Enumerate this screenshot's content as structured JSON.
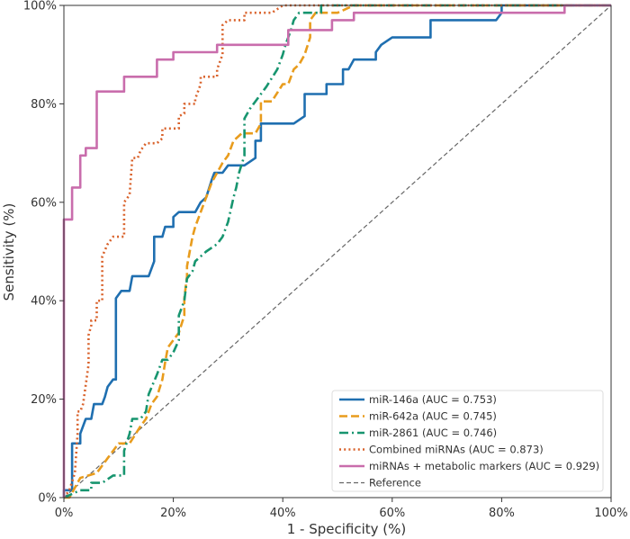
{
  "chart_data": {
    "type": "line",
    "xlabel": "1 - Specificity (%)",
    "ylabel": "Sensitivity (%)",
    "xlim": [
      0,
      100
    ],
    "ylim": [
      0,
      100
    ],
    "x_ticks": [
      "0%",
      "20%",
      "40%",
      "60%",
      "80%",
      "100%"
    ],
    "y_ticks": [
      "0%",
      "20%",
      "40%",
      "60%",
      "80%",
      "100%"
    ],
    "x_tick_values": [
      0,
      20,
      40,
      60,
      80,
      100
    ],
    "y_tick_values": [
      0,
      20,
      40,
      60,
      80,
      100
    ],
    "grid": false,
    "legend_position": "bottom-right",
    "series": [
      {
        "name": "miR-146a (AUC = 0.753)",
        "color": "#1f6fb0",
        "style": "solid",
        "points": [
          [
            0,
            0
          ],
          [
            0,
            1.5
          ],
          [
            1.5,
            1.5
          ],
          [
            1.5,
            11
          ],
          [
            3,
            11
          ],
          [
            3,
            13
          ],
          [
            4,
            16
          ],
          [
            5,
            16
          ],
          [
            5.5,
            19
          ],
          [
            7,
            19
          ],
          [
            7.5,
            20.5
          ],
          [
            8,
            22.5
          ],
          [
            9,
            24
          ],
          [
            9.5,
            24
          ],
          [
            9.5,
            40.5
          ],
          [
            10.5,
            42
          ],
          [
            12,
            42
          ],
          [
            12.5,
            45
          ],
          [
            15.5,
            45
          ],
          [
            16.5,
            48
          ],
          [
            16.5,
            53
          ],
          [
            18,
            53
          ],
          [
            18.5,
            55
          ],
          [
            20,
            55
          ],
          [
            20,
            57
          ],
          [
            21,
            58
          ],
          [
            24,
            58
          ],
          [
            25,
            60
          ],
          [
            26,
            61
          ],
          [
            27,
            64.5
          ],
          [
            27.5,
            66
          ],
          [
            29,
            66
          ],
          [
            30,
            67.5
          ],
          [
            33,
            67.5
          ],
          [
            35,
            69
          ],
          [
            35,
            72.5
          ],
          [
            36,
            72.5
          ],
          [
            36,
            76
          ],
          [
            42,
            76
          ],
          [
            44,
            77.5
          ],
          [
            44,
            82
          ],
          [
            48,
            82
          ],
          [
            48,
            84
          ],
          [
            51,
            84
          ],
          [
            51,
            87
          ],
          [
            52,
            87
          ],
          [
            53,
            89
          ],
          [
            57,
            89
          ],
          [
            57,
            90.5
          ],
          [
            58,
            92
          ],
          [
            60,
            93.5
          ],
          [
            67,
            93.5
          ],
          [
            67,
            97
          ],
          [
            79,
            97
          ],
          [
            80,
            98.5
          ],
          [
            80,
            100
          ],
          [
            100,
            100
          ]
        ]
      },
      {
        "name": "miR-642a (AUC = 0.745)",
        "color": "#e89c1d",
        "style": "dashed",
        "points": [
          [
            0,
            0
          ],
          [
            1,
            0
          ],
          [
            3,
            4
          ],
          [
            6,
            5
          ],
          [
            7,
            6.5
          ],
          [
            8,
            8
          ],
          [
            9,
            9.5
          ],
          [
            10,
            11
          ],
          [
            12,
            11
          ],
          [
            14,
            14.5
          ],
          [
            15,
            16
          ],
          [
            16,
            19
          ],
          [
            17,
            20.5
          ],
          [
            18,
            24
          ],
          [
            18.5,
            27.5
          ],
          [
            19,
            30.5
          ],
          [
            20,
            32
          ],
          [
            21,
            33.5
          ],
          [
            22,
            37
          ],
          [
            22,
            40.5
          ],
          [
            22.5,
            45
          ],
          [
            22.5,
            47
          ],
          [
            23,
            50
          ],
          [
            23.5,
            53
          ],
          [
            24,
            55
          ],
          [
            25,
            58
          ],
          [
            26,
            61
          ],
          [
            27,
            64
          ],
          [
            28,
            66
          ],
          [
            29,
            68
          ],
          [
            30,
            69.5
          ],
          [
            31,
            72.5
          ],
          [
            32.5,
            74
          ],
          [
            35,
            74
          ],
          [
            36,
            76
          ],
          [
            36,
            80.5
          ],
          [
            38,
            80.5
          ],
          [
            40,
            84
          ],
          [
            41,
            84
          ],
          [
            42,
            87
          ],
          [
            43,
            88
          ],
          [
            44,
            90
          ],
          [
            45,
            93.5
          ],
          [
            45,
            97
          ],
          [
            46,
            98.5
          ],
          [
            48,
            98.5
          ],
          [
            50,
            98.5
          ],
          [
            53,
            100
          ],
          [
            100,
            100
          ]
        ]
      },
      {
        "name": "miR-2861 (AUC = 0.746)",
        "color": "#17956f",
        "style": "dashdot",
        "points": [
          [
            0,
            0
          ],
          [
            3,
            1.5
          ],
          [
            5,
            1.5
          ],
          [
            5,
            3
          ],
          [
            7,
            3
          ],
          [
            9,
            4.5
          ],
          [
            11,
            4.5
          ],
          [
            11,
            9.5
          ],
          [
            12,
            13
          ],
          [
            12.5,
            16
          ],
          [
            14,
            16
          ],
          [
            15,
            17.5
          ],
          [
            15.5,
            21
          ],
          [
            17,
            25
          ],
          [
            18,
            28
          ],
          [
            19,
            28
          ],
          [
            20,
            29.5
          ],
          [
            21,
            32
          ],
          [
            21,
            37
          ],
          [
            22,
            40
          ],
          [
            22.5,
            44.5
          ],
          [
            23.5,
            46
          ],
          [
            24,
            48
          ],
          [
            26,
            50
          ],
          [
            28,
            51.5
          ],
          [
            29,
            53
          ],
          [
            30,
            56
          ],
          [
            31,
            61
          ],
          [
            31.5,
            63
          ],
          [
            32,
            66
          ],
          [
            33,
            69.5
          ],
          [
            33,
            74
          ],
          [
            33,
            77
          ],
          [
            34,
            79
          ],
          [
            36,
            82
          ],
          [
            37,
            83.5
          ],
          [
            39,
            87
          ],
          [
            40,
            90
          ],
          [
            40.5,
            92
          ],
          [
            41.5,
            95
          ],
          [
            42,
            97
          ],
          [
            43,
            98.5
          ],
          [
            45,
            98.5
          ],
          [
            47,
            98.5
          ],
          [
            47,
            100
          ],
          [
            100,
            100
          ]
        ]
      },
      {
        "name": "Combined miRNAs (AUC = 0.873)",
        "color": "#d9622b",
        "style": "dotted",
        "points": [
          [
            0,
            0
          ],
          [
            1,
            1.5
          ],
          [
            2,
            5
          ],
          [
            2.5,
            13
          ],
          [
            2.5,
            17.5
          ],
          [
            3,
            17.5
          ],
          [
            3.5,
            19
          ],
          [
            4.5,
            27
          ],
          [
            4.5,
            33
          ],
          [
            5,
            35
          ],
          [
            5,
            36
          ],
          [
            6,
            36
          ],
          [
            6,
            40
          ],
          [
            7,
            40
          ],
          [
            7,
            49
          ],
          [
            8,
            51.5
          ],
          [
            9,
            53
          ],
          [
            11,
            53
          ],
          [
            11,
            60
          ],
          [
            12,
            61.5
          ],
          [
            12.5,
            69
          ],
          [
            13.5,
            69
          ],
          [
            14,
            70.5
          ],
          [
            15,
            72
          ],
          [
            17,
            72
          ],
          [
            18,
            73
          ],
          [
            18,
            75
          ],
          [
            21,
            75
          ],
          [
            21,
            77.5
          ],
          [
            22,
            78
          ],
          [
            22,
            80
          ],
          [
            24,
            80
          ],
          [
            24,
            81
          ],
          [
            25,
            84
          ],
          [
            25,
            85.5
          ],
          [
            28,
            85.5
          ],
          [
            28,
            87
          ],
          [
            29,
            90
          ],
          [
            29,
            96
          ],
          [
            30,
            97
          ],
          [
            33,
            97
          ],
          [
            33,
            98.5
          ],
          [
            38,
            98.5
          ],
          [
            40,
            100
          ],
          [
            100,
            100
          ]
        ]
      },
      {
        "name": "miRNAs + metabolic markers (AUC = 0.929)",
        "color": "#c96dac",
        "style": "solid",
        "points": [
          [
            0,
            0
          ],
          [
            0,
            56.5
          ],
          [
            1.5,
            56.5
          ],
          [
            1.5,
            63
          ],
          [
            3,
            63
          ],
          [
            3,
            69.5
          ],
          [
            4,
            69.5
          ],
          [
            4,
            71
          ],
          [
            6,
            71
          ],
          [
            6,
            82.5
          ],
          [
            11,
            82.5
          ],
          [
            11,
            85.5
          ],
          [
            17,
            85.5
          ],
          [
            17,
            89
          ],
          [
            20,
            89
          ],
          [
            20,
            90.5
          ],
          [
            28,
            90.5
          ],
          [
            28,
            92
          ],
          [
            41,
            92
          ],
          [
            41,
            95
          ],
          [
            49,
            95
          ],
          [
            49,
            97
          ],
          [
            53,
            97
          ],
          [
            53,
            98.5
          ],
          [
            91.5,
            98.5
          ],
          [
            91.5,
            100
          ],
          [
            100,
            100
          ]
        ]
      },
      {
        "name": "Reference",
        "color": "#666666",
        "style": "reference",
        "points": [
          [
            0,
            0
          ],
          [
            100,
            100
          ]
        ]
      }
    ]
  }
}
